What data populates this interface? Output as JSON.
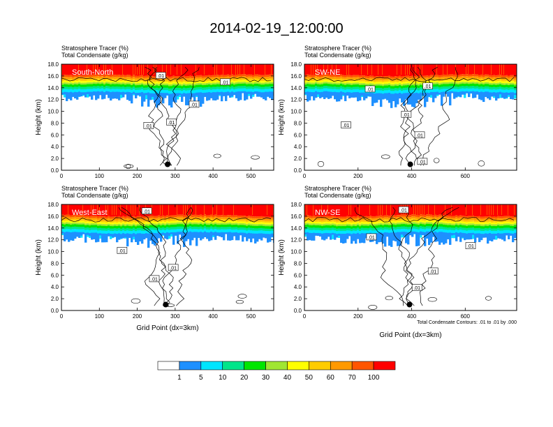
{
  "page_title": "2014-02-19_12:00:00",
  "chart_data": [
    {
      "type": "heatmap",
      "panel": "South-North",
      "subtitle_line1": "Stratosphere Tracer   (%)",
      "subtitle_line2": "Total Condensate   (g/kg)",
      "ylabel": "Height (km)",
      "xlabel": "",
      "xlim": [
        0,
        560
      ],
      "ylim": [
        0,
        18
      ],
      "xticks": [
        0,
        100,
        200,
        300,
        400,
        500
      ],
      "xtick_labels": [
        "0",
        "100",
        "200",
        "300",
        "400",
        "500"
      ],
      "yticks": [
        0,
        2,
        4,
        6,
        8,
        10,
        12,
        14,
        16,
        18
      ],
      "ytick_labels": [
        "0.0",
        "2.0",
        "4.0",
        "6.0",
        "8.0",
        "10.0",
        "12.0",
        "14.0",
        "16.0",
        "18.0"
      ],
      "marker": {
        "x": 280,
        "y": 1.0
      },
      "contour_labels": [
        {
          "text": ".01",
          "x": 262,
          "y": 16.1
        },
        {
          "text": ".01",
          "x": 432,
          "y": 15.0
        },
        {
          "text": ".01",
          "x": 350,
          "y": 11.2
        },
        {
          "text": ".01",
          "x": 230,
          "y": 7.6
        },
        {
          "text": ".01",
          "x": 290,
          "y": 8.2
        }
      ]
    },
    {
      "type": "heatmap",
      "panel": "SW-NE",
      "subtitle_line1": "Stratosphere Tracer   (%)",
      "subtitle_line2": "Total Condensate   (g/kg)",
      "ylabel": "Height (km)",
      "xlabel": "",
      "xlim": [
        0,
        792
      ],
      "ylim": [
        0,
        18
      ],
      "xticks": [
        0,
        200,
        400,
        600
      ],
      "xtick_labels": [
        "0",
        "200",
        "400",
        "600"
      ],
      "yticks": [
        0,
        2,
        4,
        6,
        8,
        10,
        12,
        14,
        16,
        18
      ],
      "ytick_labels": [
        "0.0",
        "2.0",
        "4.0",
        "6.0",
        "8.0",
        "10.0",
        "12.0",
        "14.0",
        "16.0",
        "18.0"
      ],
      "marker": {
        "x": 395,
        "y": 1.0
      },
      "contour_labels": [
        {
          "text": ".01",
          "x": 245,
          "y": 13.8
        },
        {
          "text": ".01",
          "x": 380,
          "y": 9.5
        },
        {
          "text": ".01",
          "x": 460,
          "y": 14.3
        },
        {
          "text": ".01",
          "x": 155,
          "y": 7.7
        },
        {
          "text": ".01",
          "x": 430,
          "y": 6.0
        },
        {
          "text": ".01",
          "x": 440,
          "y": 1.5
        }
      ]
    },
    {
      "type": "heatmap",
      "panel": "West-East",
      "subtitle_line1": "Stratosphere Tracer   (%)",
      "subtitle_line2": "Total Condensate   (g/kg)",
      "ylabel": "Height (km)",
      "xlabel": "Grid Point (dx=3km)",
      "xlim": [
        0,
        560
      ],
      "ylim": [
        0,
        18
      ],
      "xticks": [
        0,
        100,
        200,
        300,
        400,
        500
      ],
      "xtick_labels": [
        "0",
        "100",
        "200",
        "300",
        "400",
        "500"
      ],
      "yticks": [
        0,
        2,
        4,
        6,
        8,
        10,
        12,
        14,
        16,
        18
      ],
      "ytick_labels": [
        "0.0",
        "2.0",
        "4.0",
        "6.0",
        "8.0",
        "10.0",
        "12.0",
        "14.0",
        "16.0",
        "18.0"
      ],
      "marker": {
        "x": 275,
        "y": 1.0
      },
      "contour_labels": [
        {
          "text": ".01",
          "x": 225,
          "y": 16.9
        },
        {
          "text": ".01",
          "x": 160,
          "y": 10.2
        },
        {
          "text": ".01",
          "x": 295,
          "y": 7.3
        },
        {
          "text": ".01",
          "x": 245,
          "y": 5.4
        }
      ]
    },
    {
      "type": "heatmap",
      "panel": "NW-SE",
      "subtitle_line1": "Stratosphere Tracer   (%)",
      "subtitle_line2": "Total Condensate   (g/kg)",
      "ylabel": "Height (km)",
      "xlabel": "Grid Point (dx=3km)",
      "xlim": [
        0,
        792
      ],
      "ylim": [
        0,
        18
      ],
      "xticks": [
        0,
        200,
        400,
        600
      ],
      "xtick_labels": [
        "0",
        "200",
        "400",
        "600"
      ],
      "yticks": [
        0,
        2,
        4,
        6,
        8,
        10,
        12,
        14,
        16,
        18
      ],
      "ytick_labels": [
        "0.0",
        "2.0",
        "4.0",
        "6.0",
        "8.0",
        "10.0",
        "12.0",
        "14.0",
        "16.0",
        "18.0"
      ],
      "marker": {
        "x": 392,
        "y": 1.0
      },
      "contour_labels": [
        {
          "text": ".01",
          "x": 370,
          "y": 17.1
        },
        {
          "text": ".01",
          "x": 250,
          "y": 12.5
        },
        {
          "text": ".01",
          "x": 620,
          "y": 11.0
        },
        {
          "text": ".01",
          "x": 480,
          "y": 6.7
        },
        {
          "text": ".01",
          "x": 420,
          "y": 3.9
        }
      ]
    }
  ],
  "footnote": "Total Condensate Contours: .01 to .01 by .000",
  "colorbar": {
    "labels": [
      "1",
      "5",
      "10",
      "20",
      "30",
      "40",
      "50",
      "60",
      "70",
      "100"
    ],
    "colors": [
      "#ffffff",
      "#1e90ff",
      "#00e5ff",
      "#00e58a",
      "#00e600",
      "#a0e632",
      "#ffff00",
      "#ffcc00",
      "#ff9900",
      "#ff5500",
      "#ff0000"
    ]
  }
}
